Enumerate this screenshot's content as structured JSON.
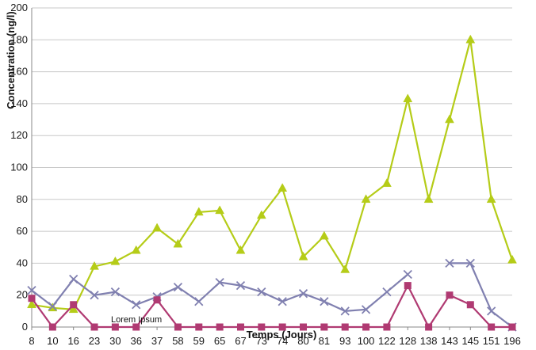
{
  "chart_data": {
    "type": "line",
    "title": "",
    "xlabel": "Temps (Jours)",
    "ylabel": "Concentration (ng/l)",
    "ylim": [
      0,
      200
    ],
    "yticks": [
      "0",
      "20",
      "40",
      "60",
      "80",
      "100",
      "120",
      "140",
      "160",
      "180",
      "200"
    ],
    "categories": [
      "8",
      "10",
      "16",
      "23",
      "30",
      "36",
      "37",
      "58",
      "59",
      "65",
      "67",
      "73",
      "74",
      "80",
      "81",
      "93",
      "100",
      "122",
      "128",
      "138",
      "143",
      "145",
      "151",
      "196"
    ],
    "grid": true,
    "legend": "none",
    "annotation": "Lorem Ipsum",
    "series": [
      {
        "color": "#b5cc18",
        "marker": "triangle",
        "values": [
          14,
          12,
          11,
          38,
          41,
          48,
          62,
          52,
          72,
          73,
          48,
          70,
          87,
          44,
          57,
          36,
          80,
          90,
          143,
          80,
          130,
          180,
          80,
          42
        ]
      },
      {
        "color": "#8080b0",
        "marker": "x",
        "values": [
          23,
          13,
          30,
          20,
          22,
          14,
          19,
          25,
          16,
          28,
          26,
          22,
          16,
          21,
          16,
          10,
          11,
          22,
          33,
          null,
          40,
          40,
          10,
          0
        ]
      },
      {
        "color": "#b03a72",
        "marker": "square",
        "values": [
          18,
          0,
          14,
          0,
          0,
          0,
          17,
          0,
          0,
          0,
          0,
          0,
          0,
          0,
          0,
          0,
          0,
          0,
          26,
          0,
          20,
          14,
          0,
          0
        ]
      }
    ]
  }
}
